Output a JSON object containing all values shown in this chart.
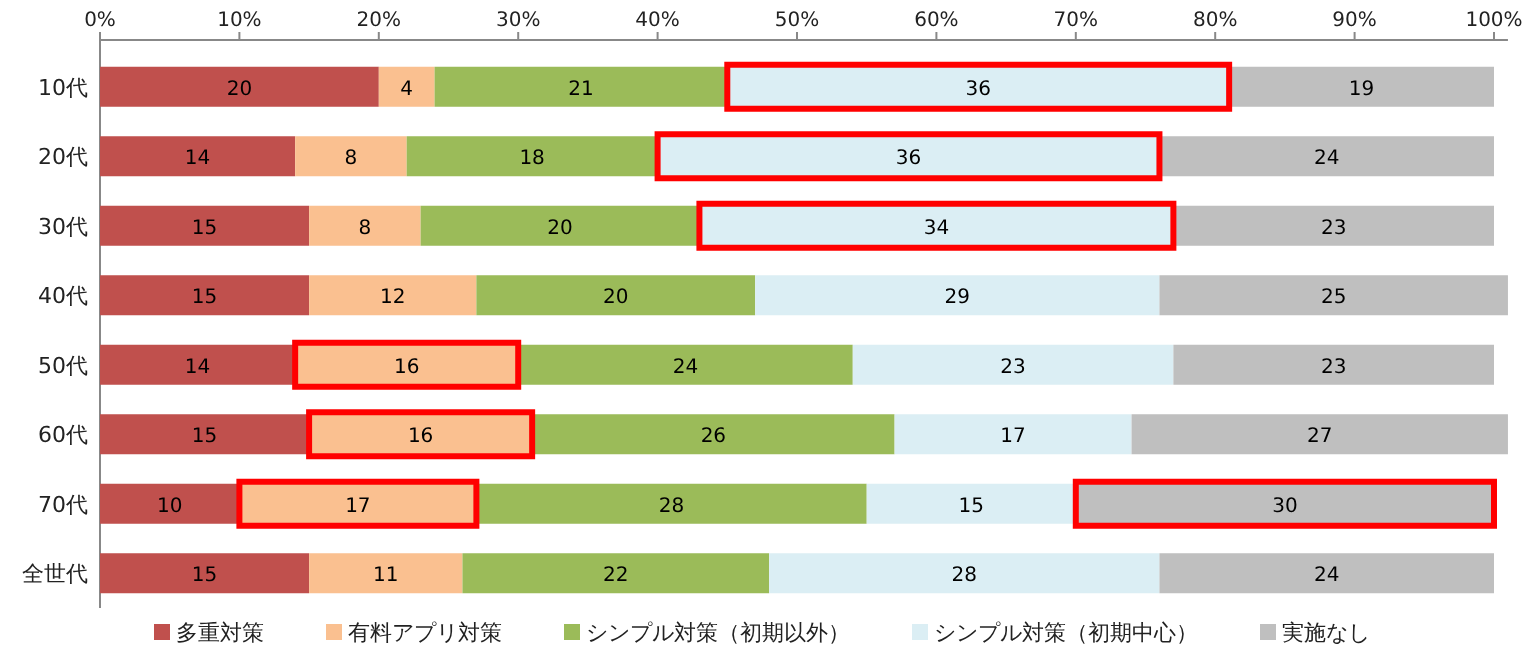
{
  "chart_data": {
    "type": "bar",
    "orientation": "horizontal",
    "stacked": true,
    "data_labels": true,
    "legend": "bottom",
    "grid": false,
    "categories": [
      "10代",
      "20代",
      "30代",
      "40代",
      "50代",
      "60代",
      "70代",
      "全世代"
    ],
    "xlim": [
      0,
      101
    ],
    "xticks": [
      {
        "value": 0,
        "label": "0%"
      },
      {
        "value": 10,
        "label": "10%"
      },
      {
        "value": 20,
        "label": "20%"
      },
      {
        "value": 30,
        "label": "30%"
      },
      {
        "value": 40,
        "label": "40%"
      },
      {
        "value": 50,
        "label": "50%"
      },
      {
        "value": 60,
        "label": "60%"
      },
      {
        "value": 70,
        "label": "70%"
      },
      {
        "value": 80,
        "label": "80%"
      },
      {
        "value": 90,
        "label": "90%"
      },
      {
        "value": 100,
        "label": "100%"
      }
    ],
    "series": [
      {
        "name": "多重対策",
        "color": "#c0504d",
        "values": [
          20,
          14,
          15,
          15,
          14,
          15,
          10,
          15
        ]
      },
      {
        "name": "有料アプリ対策",
        "color": "#fac090",
        "values": [
          4,
          8,
          8,
          12,
          16,
          16,
          17,
          11
        ]
      },
      {
        "name": "シンプル対策（初期以外）",
        "color": "#9bbb59",
        "values": [
          21,
          18,
          20,
          20,
          24,
          26,
          28,
          22
        ]
      },
      {
        "name": "シンプル対策（初期中心）",
        "color": "#dbeef4",
        "values": [
          36,
          36,
          34,
          29,
          23,
          17,
          15,
          28
        ]
      },
      {
        "name": "実施なし",
        "color": "#bfbfbf",
        "values": [
          19,
          24,
          23,
          25,
          23,
          27,
          30,
          24
        ]
      }
    ],
    "legend_title": null
  }
}
